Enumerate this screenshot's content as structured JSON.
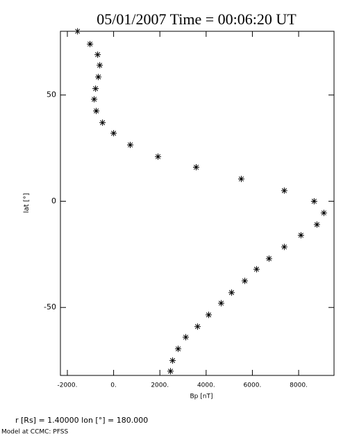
{
  "chart_data": {
    "type": "scatter",
    "title": "05/01/2007 Time = 00:06:20 UT",
    "x_label": "Bp [nT]",
    "y_label": "lat [°]",
    "footer": [
      "r [Rs] = 1.40000    lon [°] = 180.000",
      "Model at CCMC: PFSS"
    ],
    "x": [
      -1560,
      -1020,
      -690,
      -600,
      -660,
      -780,
      -840,
      -750,
      -480,
      0,
      720,
      1920,
      3570,
      5520,
      7380,
      8670,
      9090,
      8790,
      8100,
      7380,
      6720,
      6180,
      5670,
      5100,
      4650,
      4110,
      3630,
      3120,
      2790,
      2550,
      2460
    ],
    "values": [
      80,
      74,
      69,
      64,
      58.5,
      53,
      48,
      42.5,
      37,
      32,
      26.5,
      21,
      16,
      10.5,
      5,
      0,
      -5.5,
      -11,
      -16,
      -21.5,
      -27,
      -32,
      -37.5,
      -43,
      -48,
      -53.5,
      -59,
      -64,
      -69.5,
      -75,
      -80
    ],
    "color": "#000000",
    "xlim": [
      -2300,
      9530
    ],
    "ylim": [
      -82,
      80
    ],
    "xticks": [
      {
        "value": -2000,
        "label": "-2000."
      },
      {
        "value": 0,
        "label": "0."
      },
      {
        "value": 2000,
        "label": "2000."
      },
      {
        "value": 4000,
        "label": "4000."
      },
      {
        "value": 6000,
        "label": "6000."
      },
      {
        "value": 8000,
        "label": "8000."
      }
    ],
    "yticks": [
      50,
      0,
      -50
    ]
  }
}
